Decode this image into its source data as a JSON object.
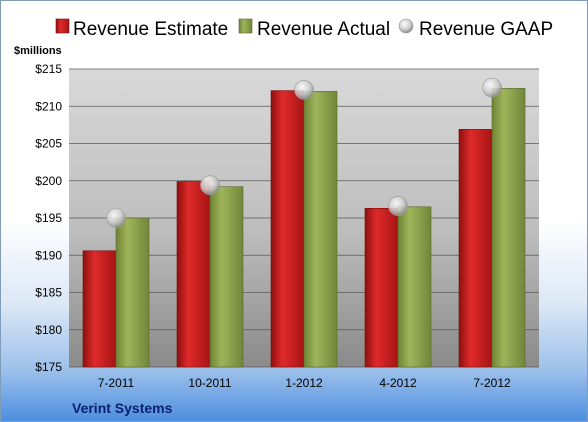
{
  "chart_data": {
    "type": "bar",
    "unit_label": "$millions",
    "company": "Verint Systems",
    "categories": [
      "7-2011",
      "10-2011",
      "1-2012",
      "4-2012",
      "7-2012"
    ],
    "series": [
      {
        "name": "Revenue Estimate",
        "kind": "bar",
        "color": "#cc1f1f",
        "values": [
          190.6,
          199.9,
          212.1,
          196.3,
          206.9
        ]
      },
      {
        "name": "Revenue Actual",
        "kind": "bar",
        "color": "#8da24a",
        "values": [
          195.0,
          199.2,
          212.0,
          196.5,
          212.4
        ]
      },
      {
        "name": "Revenue GAAP",
        "kind": "marker",
        "color": "#c8c8c8",
        "values": [
          195.0,
          199.4,
          212.2,
          196.6,
          212.5
        ]
      }
    ],
    "ylim": [
      175,
      215
    ],
    "yticks": [
      "$175",
      "$180",
      "$185",
      "$190",
      "$195",
      "$200",
      "$205",
      "$210",
      "$215"
    ],
    "ytick_values": [
      175,
      180,
      185,
      190,
      195,
      200,
      205,
      210,
      215
    ],
    "grid": true,
    "legend_position": "top"
  }
}
